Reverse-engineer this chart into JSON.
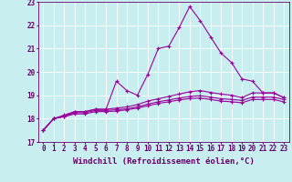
{
  "xlabel": "Windchill (Refroidissement éolien,°C)",
  "bg_color": "#c8eef0",
  "line_color": "#990099",
  "grid_color": "#ffffff",
  "ylim": [
    17,
    23
  ],
  "xlim": [
    -0.5,
    23.5
  ],
  "yticks": [
    17,
    18,
    19,
    20,
    21,
    22,
    23
  ],
  "xticks": [
    0,
    1,
    2,
    3,
    4,
    5,
    6,
    7,
    8,
    9,
    10,
    11,
    12,
    13,
    14,
    15,
    16,
    17,
    18,
    19,
    20,
    21,
    22,
    23
  ],
  "series": [
    [
      17.5,
      18.0,
      18.1,
      18.3,
      18.3,
      18.4,
      18.4,
      19.6,
      19.2,
      19.0,
      19.9,
      21.0,
      21.1,
      21.9,
      22.8,
      22.2,
      21.5,
      20.8,
      20.4,
      19.7,
      19.6,
      19.1,
      19.1,
      18.9
    ],
    [
      17.5,
      18.0,
      18.15,
      18.3,
      18.3,
      18.4,
      18.4,
      18.45,
      18.5,
      18.6,
      18.75,
      18.85,
      18.95,
      19.05,
      19.15,
      19.2,
      19.12,
      19.05,
      19.0,
      18.9,
      19.1,
      19.1,
      19.1,
      18.9
    ],
    [
      17.5,
      18.0,
      18.1,
      18.25,
      18.25,
      18.35,
      18.35,
      18.38,
      18.42,
      18.5,
      18.62,
      18.72,
      18.8,
      18.88,
      18.95,
      18.98,
      18.92,
      18.85,
      18.82,
      18.78,
      18.92,
      18.92,
      18.92,
      18.82
    ],
    [
      17.5,
      18.0,
      18.08,
      18.2,
      18.2,
      18.3,
      18.3,
      18.32,
      18.38,
      18.45,
      18.55,
      18.65,
      18.72,
      18.8,
      18.86,
      18.88,
      18.82,
      18.75,
      18.72,
      18.68,
      18.82,
      18.82,
      18.82,
      18.72
    ]
  ],
  "marker": "+",
  "markersize": 3,
  "linewidth": 0.8,
  "tick_fontsize": 5.5,
  "label_fontsize": 6.5,
  "axis_color": "#660066"
}
